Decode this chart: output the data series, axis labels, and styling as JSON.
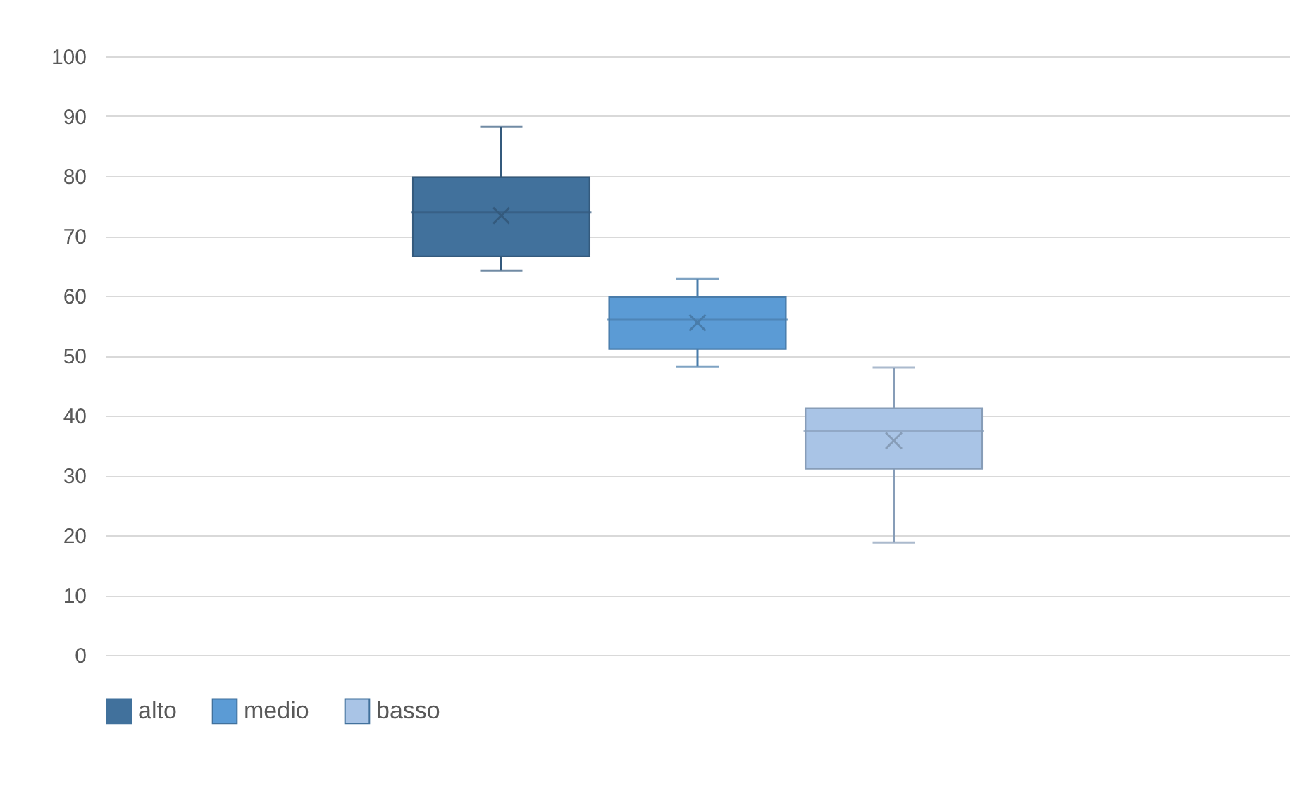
{
  "chart_data": {
    "type": "box",
    "categories": [
      null
    ],
    "ylim": [
      0,
      100
    ],
    "yticks": [
      0,
      10,
      20,
      30,
      40,
      50,
      60,
      70,
      80,
      90,
      100
    ],
    "grid": "y",
    "legend": "bottom",
    "tick_labels": "y",
    "series": [
      {
        "name": "alto",
        "color": "#41719c",
        "boxes": [
          {
            "low": 64.2,
            "q1": 66.6,
            "median": 73.9,
            "q3": 79.8,
            "high": 88.2,
            "mean": 73.4
          }
        ]
      },
      {
        "name": "medio",
        "color": "#5b9bd5",
        "boxes": [
          {
            "low": 48.2,
            "q1": 51.1,
            "median": 56.0,
            "q3": 59.8,
            "high": 62.8,
            "mean": 55.5
          }
        ]
      },
      {
        "name": "basso",
        "color": "#a9c4e6",
        "boxes": [
          {
            "low": 18.8,
            "q1": 31.1,
            "median": 37.4,
            "q3": 41.2,
            "high": 48.0,
            "mean": 35.8
          }
        ]
      }
    ]
  }
}
